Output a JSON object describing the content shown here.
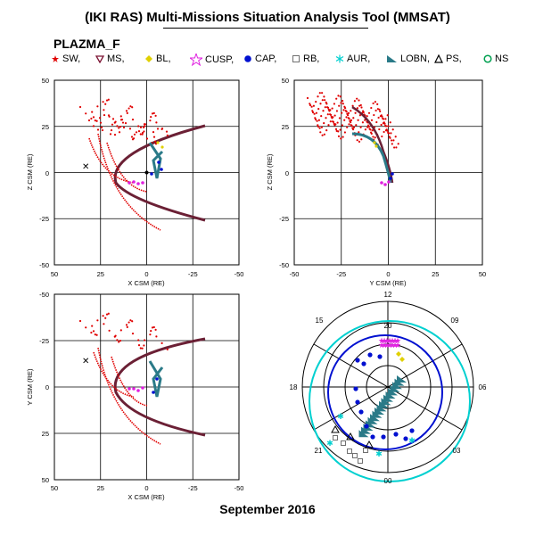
{
  "title": "(IKI RAS) Multi-Missions Situation Analysis Tool (MMSAT)",
  "satellite": "PLAZMA_F",
  "footer": "September 2016",
  "legend": [
    {
      "label": "SW,",
      "symbol": "star-icon",
      "color": "#e00000"
    },
    {
      "label": "MS,",
      "symbol": "triangle-down-icon",
      "color": "#7a1030"
    },
    {
      "label": "BL,",
      "symbol": "diamond-icon",
      "color": "#e0d000"
    },
    {
      "label": "CUSP,",
      "symbol": "large-star-icon",
      "color": "#e020e0"
    },
    {
      "label": "CAP,",
      "symbol": "filled-circle-icon",
      "color": "#0010d0"
    },
    {
      "label": "RB,",
      "symbol": "square-icon",
      "color": "#707070"
    },
    {
      "label": "AUR,",
      "symbol": "asterisk-icon",
      "color": "#00d0d0"
    },
    {
      "label": "LOBN,",
      "symbol": "filled-triangle-icon",
      "color": "#2a7a88"
    },
    {
      "label": "PS,",
      "symbol": "triangle-icon",
      "color": "#000000"
    },
    {
      "label": "NS",
      "symbol": "circle-icon",
      "color": "#00a050"
    }
  ],
  "panels": {
    "xz": {
      "xlabel": "X CSM (RE)",
      "ylabel": "Z CSM (RE)",
      "xticks": [
        "50",
        "25",
        "0",
        "-25",
        "-50"
      ],
      "yticks": [
        "50",
        "25",
        "0",
        "-25",
        "-50"
      ]
    },
    "yz": {
      "xlabel": "Y CSM (RE)",
      "ylabel": "Z CSM (RE)",
      "xticks": [
        "-50",
        "-25",
        "0",
        "25",
        "50"
      ],
      "yticks": [
        "50",
        "25",
        "0",
        "-25",
        "-50"
      ]
    },
    "xy": {
      "xlabel": "X CSM (RE)",
      "ylabel": "Y CSM (RE)",
      "xticks": [
        "50",
        "25",
        "0",
        "-25",
        "-50"
      ],
      "yticks": [
        "-50",
        "-25",
        "0",
        "25",
        "50"
      ]
    },
    "polar": {
      "labels": [
        "12",
        "09",
        "06",
        "03",
        "00",
        "21",
        "18",
        "15"
      ],
      "center_label": "20"
    }
  }
}
